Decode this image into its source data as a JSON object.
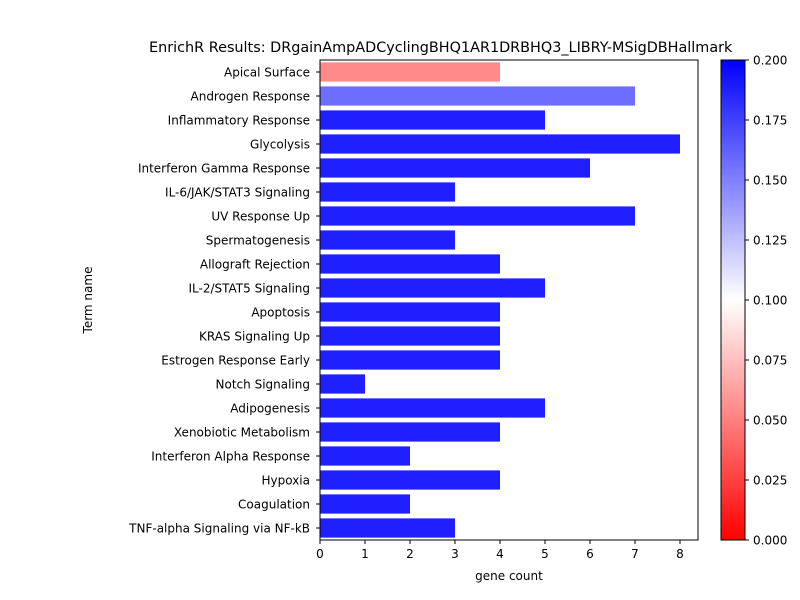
{
  "chart_data": {
    "type": "bar",
    "orientation": "horizontal",
    "title": "EnrichR Results: DRgainAmpADCyclingBHQ1AR1DRBHQ3_LIBRY-MSigDBHallmark",
    "xlabel": "gene count",
    "ylabel": "Term name",
    "xlim": [
      0,
      8.4
    ],
    "xticks": [
      0,
      1,
      2,
      3,
      4,
      5,
      6,
      7,
      8
    ],
    "categories": [
      "Apical Surface",
      "Androgen Response",
      "Inflammatory Response",
      "Glycolysis",
      "Interferon Gamma Response",
      "IL-6/JAK/STAT3 Signaling",
      "UV Response Up",
      "Spermatogenesis",
      "Allograft Rejection",
      "IL-2/STAT5 Signaling",
      "Apoptosis",
      "KRAS Signaling Up",
      "Estrogen Response Early",
      "Notch Signaling",
      "Adipogenesis",
      "Xenobiotic Metabolism",
      "Interferon Alpha Response",
      "Hypoxia",
      "Coagulation",
      "TNF-alpha Signaling via NF-kB"
    ],
    "values": [
      4,
      7,
      5,
      8,
      6,
      3,
      7,
      3,
      4,
      5,
      4,
      4,
      4,
      1,
      5,
      4,
      2,
      4,
      2,
      3
    ],
    "color_values": [
      0.048,
      0.165,
      0.2,
      0.2,
      0.2,
      0.2,
      0.2,
      0.2,
      0.2,
      0.2,
      0.2,
      0.2,
      0.2,
      0.2,
      0.2,
      0.2,
      0.2,
      0.2,
      0.2,
      0.2
    ],
    "colorbar": {
      "colormap": "bwr_r",
      "range": [
        0.0,
        0.2
      ],
      "ticks": [
        "0.000",
        "0.025",
        "0.050",
        "0.075",
        "0.100",
        "0.125",
        "0.150",
        "0.175",
        "0.200"
      ],
      "low_color": "#ff0000",
      "mid_color": "#ffffff",
      "high_color": "#0000ff"
    },
    "grid": false,
    "legend": "none"
  }
}
